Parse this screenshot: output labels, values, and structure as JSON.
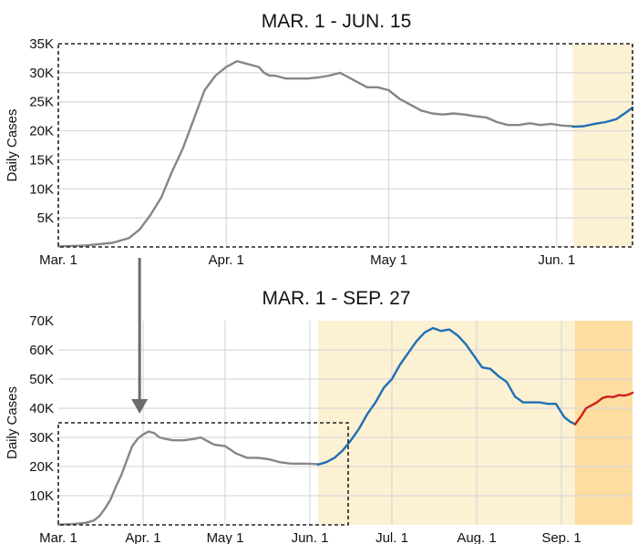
{
  "colors": {
    "history": "#868686",
    "recent": "#1f6fb5",
    "latest": "#cc1f1f",
    "highlight_light": "#fdf1d3",
    "highlight_dark": "#fddda0",
    "grid": "#d9d9d9",
    "arrow": "#6b6b6b"
  },
  "chart_data": [
    {
      "type": "line",
      "title": "MAR. 1 - JUN. 15",
      "ylabel": "Daily Cases",
      "x_unit": "days since Mar. 1",
      "xlim": [
        0,
        106
      ],
      "ylim": [
        0,
        35000
      ],
      "x_ticks": [
        {
          "label": "Mar. 1",
          "x": 0
        },
        {
          "label": "Apr. 1",
          "x": 31
        },
        {
          "label": "May 1",
          "x": 61
        },
        {
          "label": "Jun. 1",
          "x": 92
        }
      ],
      "y_ticks": [
        {
          "label": "5K",
          "y": 5000
        },
        {
          "label": "10K",
          "y": 10000
        },
        {
          "label": "15K",
          "y": 15000
        },
        {
          "label": "20K",
          "y": 20000
        },
        {
          "label": "25K",
          "y": 25000
        },
        {
          "label": "30K",
          "y": 30000
        },
        {
          "label": "35K",
          "y": 35000
        }
      ],
      "shaded_ranges": [
        {
          "x0": 95,
          "x1": 106,
          "tone": "light"
        }
      ],
      "series": [
        {
          "segment": "history",
          "x": [
            0,
            5,
            10,
            13,
            15,
            17,
            19,
            21,
            23,
            25,
            27,
            29,
            31,
            33,
            35,
            37,
            38,
            39,
            40,
            42,
            44,
            46,
            48,
            50,
            52,
            53,
            54,
            55,
            57,
            59,
            61,
            63,
            65,
            67,
            69,
            71,
            73,
            75,
            77,
            79,
            81,
            83,
            85,
            87,
            89,
            91,
            93,
            95
          ],
          "y": [
            100,
            250,
            700,
            1500,
            3000,
            5500,
            8500,
            13000,
            17000,
            22000,
            27000,
            29500,
            31000,
            32000,
            31500,
            31000,
            30000,
            29500,
            29500,
            29000,
            29000,
            29000,
            29200,
            29500,
            30000,
            29500,
            29000,
            28500,
            27500,
            27500,
            27000,
            25500,
            24500,
            23500,
            23000,
            22800,
            23000,
            22800,
            22500,
            22300,
            21500,
            21000,
            21000,
            21300,
            21000,
            21200,
            20900,
            20800
          ]
        },
        {
          "segment": "recent",
          "x": [
            95,
            97,
            99,
            101,
            103,
            105,
            106
          ],
          "y": [
            20700,
            20800,
            21200,
            21500,
            22000,
            23300,
            24000
          ]
        }
      ],
      "zoom_box": {
        "x0": 0,
        "x1": 106,
        "y0": 0,
        "y1": 35000
      }
    },
    {
      "type": "line",
      "title": "MAR. 1 - SEP. 27",
      "ylabel": "Daily Cases",
      "x_unit": "days since Mar. 1",
      "xlim": [
        0,
        210
      ],
      "ylim": [
        0,
        70000
      ],
      "x_ticks": [
        {
          "label": "Mar. 1",
          "x": 0
        },
        {
          "label": "Apr. 1",
          "x": 31
        },
        {
          "label": "May 1",
          "x": 61
        },
        {
          "label": "Jun. 1",
          "x": 92
        },
        {
          "label": "Jul. 1",
          "x": 122
        },
        {
          "label": "Aug. 1",
          "x": 153
        },
        {
          "label": "Sep. 1",
          "x": 184
        }
      ],
      "y_ticks": [
        {
          "label": "10K",
          "y": 10000
        },
        {
          "label": "20K",
          "y": 20000
        },
        {
          "label": "30K",
          "y": 30000
        },
        {
          "label": "40K",
          "y": 40000
        },
        {
          "label": "50K",
          "y": 50000
        },
        {
          "label": "60K",
          "y": 60000
        },
        {
          "label": "70K",
          "y": 70000
        }
      ],
      "shaded_ranges": [
        {
          "x0": 95,
          "x1": 189,
          "tone": "light"
        },
        {
          "x0": 189,
          "x1": 210,
          "tone": "dark"
        }
      ],
      "series": [
        {
          "segment": "history",
          "x": [
            0,
            5,
            10,
            13,
            15,
            17,
            19,
            21,
            23,
            25,
            27,
            29,
            31,
            33,
            35,
            37,
            39,
            42,
            46,
            50,
            52,
            54,
            57,
            61,
            65,
            69,
            73,
            77,
            81,
            85,
            89,
            93,
            95
          ],
          "y": [
            100,
            250,
            700,
            1500,
            3000,
            5500,
            8500,
            13000,
            17000,
            22000,
            27000,
            29500,
            31000,
            32000,
            31500,
            30000,
            29500,
            29000,
            29000,
            29500,
            30000,
            29000,
            27500,
            27000,
            24500,
            23000,
            23000,
            22500,
            21500,
            21000,
            21000,
            20900,
            20800
          ]
        },
        {
          "segment": "recent",
          "x": [
            95,
            98,
            101,
            104,
            107,
            110,
            113,
            116,
            119,
            122,
            125,
            128,
            131,
            134,
            137,
            140,
            143,
            146,
            149,
            152,
            155,
            158,
            161,
            164,
            167,
            170,
            173,
            176,
            179,
            182,
            185,
            187,
            189
          ],
          "y": [
            20700,
            21500,
            23000,
            25500,
            29000,
            33000,
            38000,
            42000,
            47000,
            50000,
            55000,
            59000,
            63000,
            66000,
            67500,
            66500,
            67000,
            65000,
            62000,
            58000,
            54000,
            53500,
            51000,
            49000,
            44000,
            42000,
            42000,
            42000,
            41500,
            41500,
            37000,
            35500,
            34500
          ]
        },
        {
          "segment": "latest",
          "x": [
            189,
            191,
            193,
            195,
            197,
            199,
            201,
            203,
            205,
            207,
            209,
            210
          ],
          "y": [
            34500,
            37000,
            40000,
            41000,
            42000,
            43500,
            44000,
            43800,
            44500,
            44300,
            44800,
            45300
          ]
        }
      ],
      "zoom_box": {
        "x0": 0,
        "x1": 106,
        "y0": 0,
        "y1": 35000
      }
    }
  ]
}
